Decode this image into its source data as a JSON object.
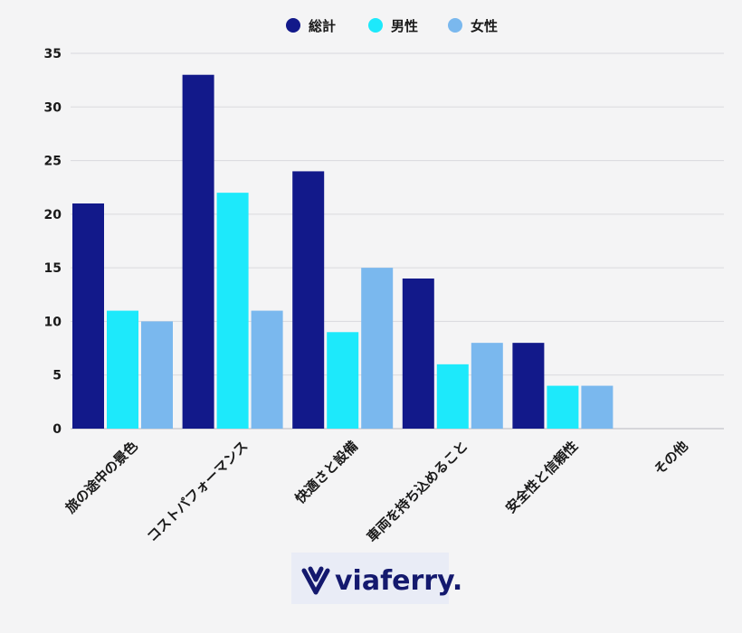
{
  "chart_data": {
    "type": "bar",
    "title": "",
    "xlabel": "",
    "ylabel": "",
    "ylim": [
      0,
      35
    ],
    "yticks": [
      0,
      5,
      10,
      15,
      20,
      25,
      30,
      35
    ],
    "grid": true,
    "legend_position": "top-center",
    "categories": [
      "旅の途中の景色",
      "コストパフォーマンス",
      "快適さと設備",
      "車両を持ち込めること",
      "安全性と信頼性",
      "その他"
    ],
    "series": [
      {
        "name": "総計",
        "color": "#12198a",
        "values": [
          21,
          33,
          24,
          14,
          8,
          0
        ]
      },
      {
        "name": "男性",
        "color": "#1de9fb",
        "values": [
          11,
          22,
          9,
          6,
          4,
          0
        ]
      },
      {
        "name": "女性",
        "color": "#7ab8ee",
        "values": [
          10,
          11,
          15,
          8,
          4,
          0
        ]
      }
    ]
  },
  "logo": {
    "text": "viaferry.",
    "text_color": "#14196e",
    "accent_color": "#2aa8d8",
    "background": "#e9ecf6"
  }
}
